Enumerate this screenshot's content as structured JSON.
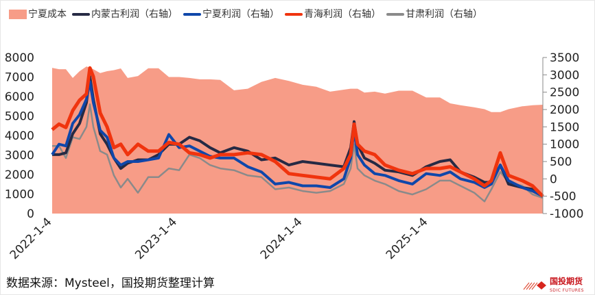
{
  "legend": [
    {
      "label": "宁夏成本",
      "color": "#F79C87",
      "type": "area"
    },
    {
      "label": "内蒙古利润（右轴）",
      "color": "#262A44",
      "type": "line"
    },
    {
      "label": "宁夏利润（右轴）",
      "color": "#0F47AA",
      "type": "line"
    },
    {
      "label": "青海利润（右轴）",
      "color": "#F0340E",
      "type": "line"
    },
    {
      "label": "甘肃利润（右轴）",
      "color": "#8A8A8A",
      "type": "line"
    }
  ],
  "source": "数据来源：Mysteel，国投期货整理计算",
  "logo": {
    "cn": "国投期货",
    "en": "SDIC FUTURES"
  },
  "chart_data": {
    "type": "line",
    "x_tick_labels": [
      "2022-1-4",
      "2023-1-4",
      "2024-1-4",
      "2025-1-4"
    ],
    "x_ticks": [
      "2022-01-04",
      "2023-01-04",
      "2024-01-04",
      "2025-01-04"
    ],
    "ylim_left": [
      0,
      8000
    ],
    "yticks_left": [
      "0",
      "1000",
      "2000",
      "3000",
      "4000",
      "5000",
      "6000",
      "7000",
      "8000"
    ],
    "ylim_right": [
      -1000,
      3500
    ],
    "yticks_right": [
      "-1000",
      "-500",
      "0",
      "500",
      "1000",
      "1500",
      "2000",
      "2500",
      "3000",
      "3500"
    ],
    "grid": false,
    "legend_position": "top",
    "x": [
      "2022-01-04",
      "2022-01-24",
      "2022-02-13",
      "2022-03-05",
      "2022-03-25",
      "2022-04-14",
      "2022-04-24",
      "2022-05-04",
      "2022-05-24",
      "2022-06-13",
      "2022-07-03",
      "2022-07-23",
      "2022-08-12",
      "2022-09-11",
      "2022-10-11",
      "2022-11-10",
      "2022-12-10",
      "2023-01-09",
      "2023-02-08",
      "2023-03-10",
      "2023-04-09",
      "2023-05-09",
      "2023-06-18",
      "2023-07-28",
      "2023-09-06",
      "2023-10-16",
      "2023-11-25",
      "2024-01-04",
      "2024-02-13",
      "2024-03-24",
      "2024-05-03",
      "2024-05-23",
      "2024-06-02",
      "2024-06-12",
      "2024-07-02",
      "2024-08-01",
      "2024-08-31",
      "2024-10-10",
      "2024-11-19",
      "2024-12-29",
      "2025-02-07",
      "2025-03-09",
      "2025-04-08",
      "2025-05-18",
      "2025-06-17",
      "2025-07-07",
      "2025-08-02",
      "2025-08-26",
      "2025-10-05",
      "2025-11-04",
      "2025-12-04"
    ],
    "series": [
      {
        "name": "宁夏成本",
        "axis": "left",
        "type": "area",
        "color": "#F79C87",
        "values": [
          7470,
          7400,
          7400,
          6950,
          7300,
          7540,
          7480,
          7400,
          7200,
          7300,
          7350,
          7440,
          6950,
          7050,
          7450,
          7450,
          7000,
          7000,
          6950,
          6880,
          6880,
          6850,
          6320,
          6400,
          6750,
          6950,
          6800,
          6600,
          6500,
          6250,
          6350,
          6400,
          6400,
          6400,
          6200,
          6250,
          6150,
          6300,
          6300,
          5950,
          5950,
          5650,
          5550,
          5450,
          5350,
          5200,
          5200,
          5350,
          5500,
          5550,
          5580
        ]
      },
      {
        "name": "内蒙古利润（右轴）",
        "axis": "right",
        "type": "line",
        "color": "#262A44",
        "values": [
          700,
          700,
          750,
          1300,
          1600,
          2200,
          2950,
          2300,
          1300,
          1000,
          600,
          300,
          450,
          550,
          550,
          700,
          1000,
          1000,
          1200,
          1100,
          900,
          750,
          900,
          800,
          550,
          600,
          400,
          500,
          450,
          400,
          350,
          900,
          1650,
          1000,
          600,
          450,
          250,
          200,
          100,
          350,
          500,
          550,
          200,
          50,
          -100,
          -100,
          400,
          -150,
          -250,
          -300,
          -500
        ]
      },
      {
        "name": "宁夏利润（右轴）",
        "axis": "right",
        "type": "line",
        "color": "#0F47AA",
        "values": [
          700,
          1000,
          950,
          1600,
          1850,
          2300,
          2800,
          2200,
          1400,
          1200,
          600,
          400,
          500,
          500,
          550,
          600,
          1280,
          900,
          950,
          800,
          650,
          600,
          600,
          350,
          200,
          -150,
          -100,
          -200,
          -200,
          -250,
          0,
          600,
          1400,
          700,
          400,
          150,
          100,
          -50,
          -150,
          150,
          100,
          200,
          0,
          -100,
          -250,
          -150,
          400,
          -50,
          -250,
          -350,
          -500
        ]
      },
      {
        "name": "青海利润（右轴）",
        "axis": "right",
        "type": "line",
        "color": "#F0340E",
        "values": [
          1420,
          1580,
          1480,
          1970,
          2270,
          2450,
          3200,
          2950,
          1900,
          1500,
          900,
          1000,
          700,
          1000,
          800,
          800,
          1050,
          1000,
          750,
          700,
          600,
          700,
          700,
          750,
          700,
          500,
          150,
          100,
          50,
          0,
          300,
          700,
          1580,
          1000,
          800,
          700,
          400,
          250,
          150,
          300,
          300,
          350,
          200,
          0,
          -200,
          -50,
          750,
          100,
          -50,
          -200,
          -500
        ]
      },
      {
        "name": "甘肃利润（右轴）",
        "axis": "right",
        "type": "line",
        "color": "#8A8A8A",
        "values": [
          950,
          950,
          600,
          1200,
          1150,
          1500,
          2150,
          1500,
          800,
          700,
          100,
          -250,
          0,
          -400,
          50,
          50,
          300,
          250,
          700,
          600,
          400,
          300,
          250,
          100,
          50,
          -300,
          -250,
          -350,
          -400,
          -350,
          -150,
          300,
          1000,
          300,
          100,
          -50,
          -150,
          -350,
          -450,
          -300,
          -50,
          -50,
          -200,
          -400,
          -650,
          -300,
          200,
          -100,
          -200,
          -450,
          -550
        ]
      }
    ]
  }
}
